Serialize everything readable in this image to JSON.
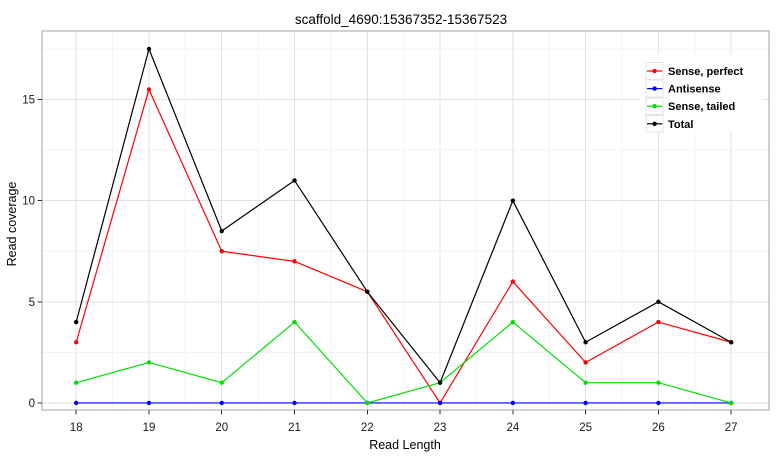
{
  "chart_data": {
    "type": "line",
    "title": "scaffold_4690:15367352-15367523",
    "xlabel": "Read Length",
    "ylabel": "Read coverage",
    "x": [
      18,
      19,
      20,
      21,
      22,
      23,
      24,
      25,
      26,
      27
    ],
    "series": [
      {
        "name": "Sense, perfect",
        "color": "#ff0000",
        "values": [
          3,
          15.5,
          7.5,
          7,
          5.5,
          0,
          6,
          2,
          4,
          3
        ]
      },
      {
        "name": "Antisense",
        "color": "#0000ff",
        "values": [
          0,
          0,
          0,
          0,
          0,
          0,
          0,
          0,
          0,
          0
        ]
      },
      {
        "name": "Sense, tailed",
        "color": "#00e000",
        "values": [
          1,
          2,
          1,
          4,
          0,
          1,
          4,
          1,
          1,
          0
        ]
      },
      {
        "name": "Total",
        "color": "#000000",
        "values": [
          4,
          17.5,
          8.5,
          11,
          5.5,
          1,
          10,
          3,
          5,
          3
        ]
      }
    ],
    "x_ticks": [
      18,
      19,
      20,
      21,
      22,
      23,
      24,
      25,
      26,
      27
    ],
    "y_ticks": [
      0,
      5,
      10,
      15
    ],
    "x_minor_ticks": [
      18.5,
      19.5,
      20.5,
      21.5,
      22.5,
      23.5,
      24.5,
      25.5,
      26.5
    ],
    "y_minor_ticks": [
      2.5,
      7.5,
      12.5,
      17.5
    ],
    "xlim": [
      17.53,
      27.52
    ],
    "ylim": [
      -0.35,
      18.39
    ],
    "grid": true,
    "legend_position": "top-right",
    "styles": {
      "background": "#ffffff",
      "panel_border": "#a3a3a3",
      "grid_major": "#e2e2e2",
      "grid_minor": "#f3f3f3",
      "tick_color": "#333333",
      "legend_key_fill": "#ffffff",
      "legend_key_border": "#e4e4e4",
      "legend_bg": "#ffffff"
    }
  }
}
